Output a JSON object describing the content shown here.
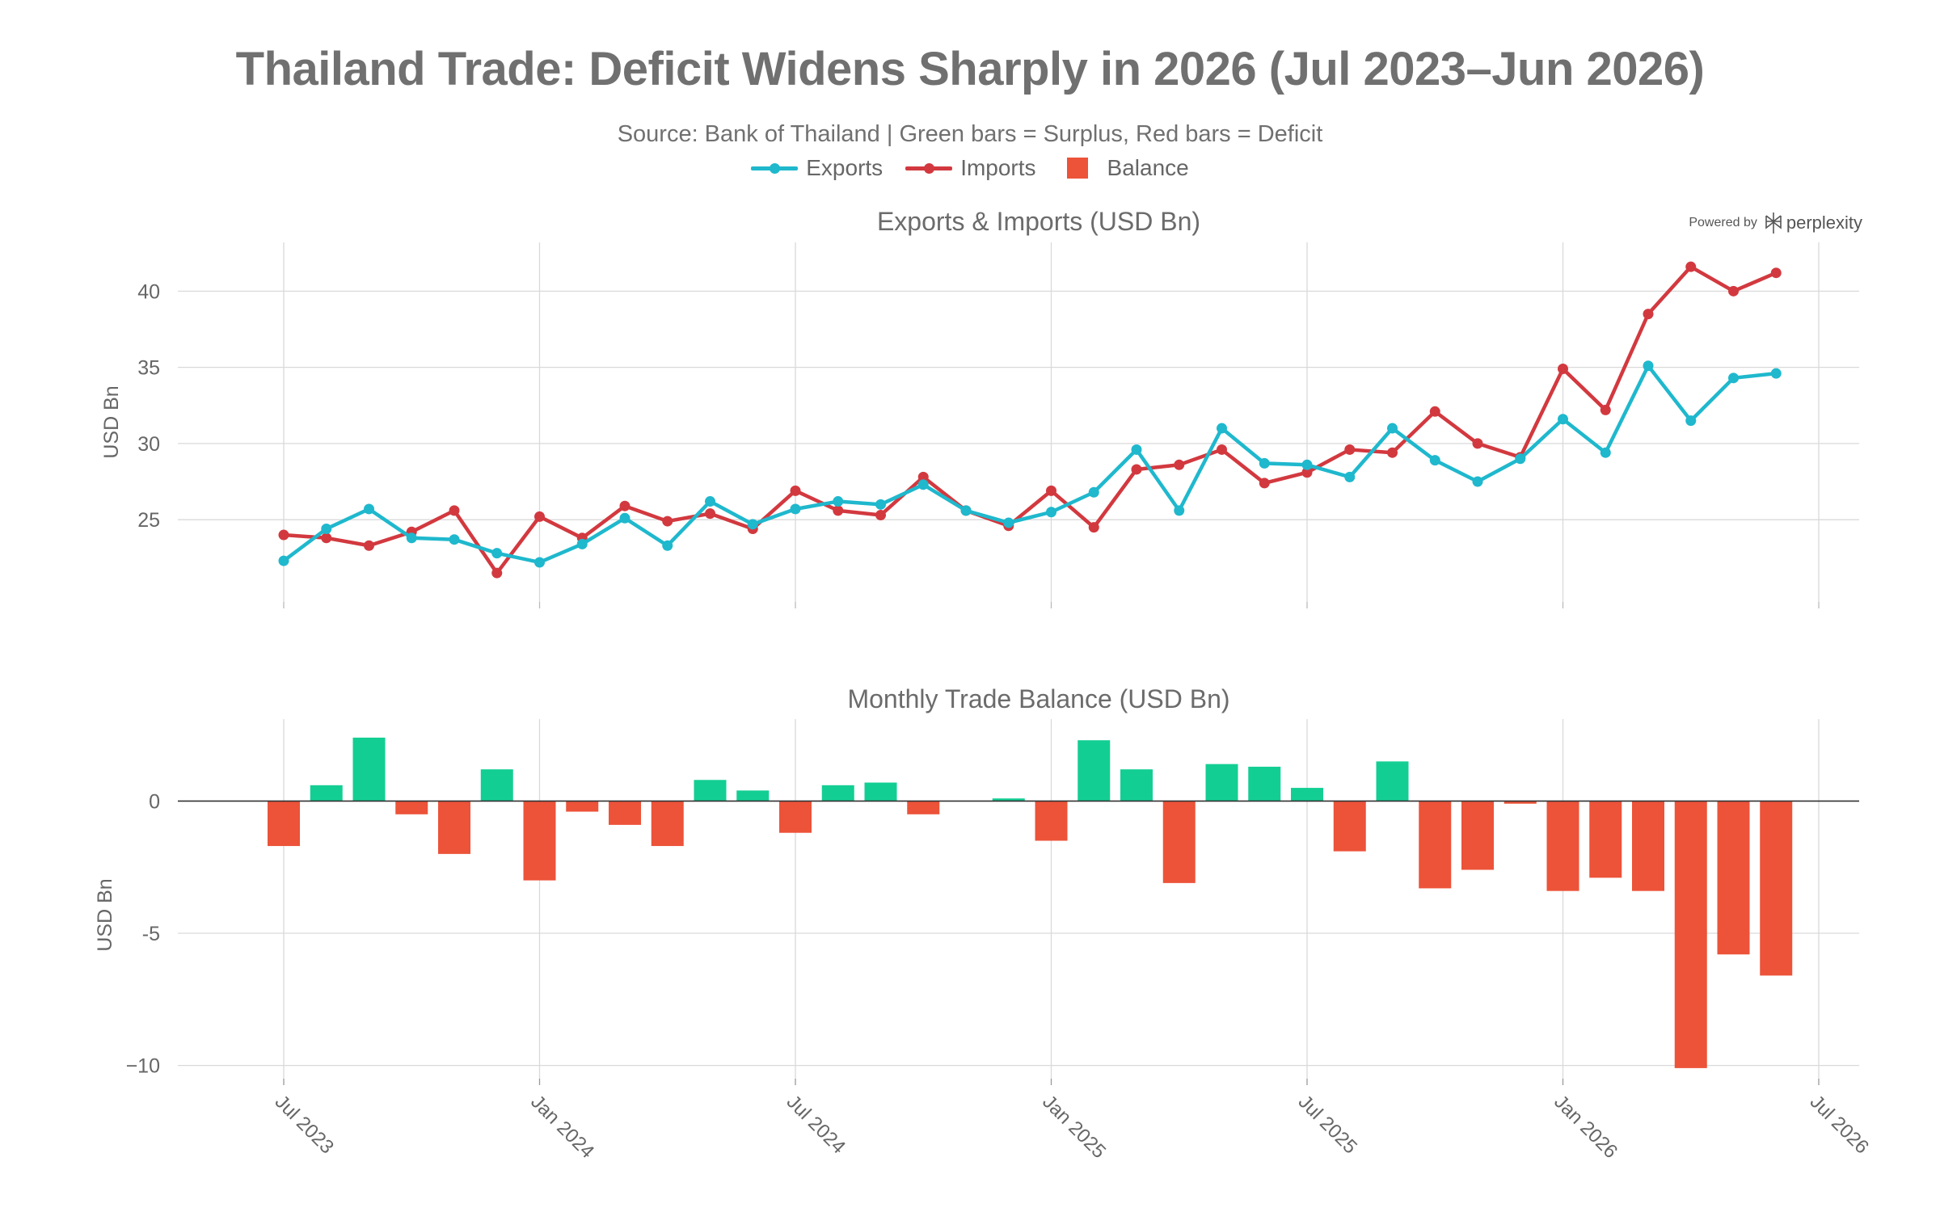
{
  "title": "Thailand Trade: Deficit Widens Sharply in 2026 (Jul 2023–Jun 2026)",
  "subtitle": "Source: Bank of Thailand | Green bars = Surplus, Red bars = Deficit",
  "legend": {
    "exports": "Exports",
    "imports": "Imports",
    "balance": "Balance"
  },
  "branding": {
    "powered_by": "Powered by",
    "brand": "perplexity"
  },
  "colors": {
    "exports": "#1fb8cd",
    "imports": "#d2393f",
    "surplus": "#13ce93",
    "deficit": "#ec5339",
    "grid": "#d9d9d9",
    "text": "#666666"
  },
  "chart_data": [
    {
      "type": "line",
      "title": "Exports & Imports (USD Bn)",
      "ylabel": "USD Bn",
      "ylim": [
        19.6,
        43.2
      ],
      "yticks": [
        25,
        30,
        35,
        40
      ],
      "x": [
        "2023-07",
        "2023-08",
        "2023-09",
        "2023-10",
        "2023-11",
        "2023-12",
        "2024-01",
        "2024-02",
        "2024-03",
        "2024-04",
        "2024-05",
        "2024-06",
        "2024-07",
        "2024-08",
        "2024-09",
        "2024-10",
        "2024-11",
        "2024-12",
        "2025-01",
        "2025-02",
        "2025-03",
        "2025-04",
        "2025-05",
        "2025-06",
        "2025-07",
        "2025-08",
        "2025-09",
        "2025-10",
        "2025-11",
        "2025-12",
        "2026-01",
        "2026-02",
        "2026-03",
        "2026-04",
        "2026-05",
        "2026-06"
      ],
      "series": [
        {
          "name": "Exports",
          "values": [
            22.3,
            24.4,
            25.7,
            23.8,
            23.7,
            22.8,
            22.2,
            23.4,
            25.1,
            23.3,
            26.2,
            24.7,
            25.7,
            26.2,
            26.0,
            27.3,
            25.6,
            24.8,
            25.5,
            26.8,
            29.6,
            25.6,
            31.0,
            28.7,
            28.6,
            27.8,
            31.0,
            28.9,
            27.5,
            29.0,
            31.6,
            29.4,
            35.1,
            31.5,
            34.3,
            34.6
          ]
        },
        {
          "name": "Imports",
          "values": [
            24.0,
            23.8,
            23.3,
            24.2,
            25.6,
            21.5,
            25.2,
            23.8,
            25.9,
            24.9,
            25.4,
            24.4,
            26.9,
            25.6,
            25.3,
            27.8,
            25.6,
            24.6,
            26.9,
            24.5,
            28.3,
            28.6,
            29.6,
            27.4,
            28.1,
            29.6,
            29.4,
            32.1,
            30.0,
            29.1,
            34.9,
            32.2,
            38.5,
            41.6,
            40.0,
            41.2
          ]
        }
      ],
      "xticks": [
        "Jul 2023",
        "Jan 2024",
        "Jul 2024",
        "Jan 2025",
        "Jul 2025",
        "Jan 2026",
        "Jul 2026"
      ],
      "grid": true
    },
    {
      "type": "bar",
      "title": "Monthly Trade Balance (USD Bn)",
      "ylabel": "USD Bn",
      "ylim": [
        -10.5,
        3.1
      ],
      "yticks": [
        -10,
        -5,
        0
      ],
      "ytick_labels": [
        "−10",
        "-5",
        "0"
      ],
      "series": [
        {
          "name": "Balance",
          "values": [
            -1.7,
            0.6,
            2.4,
            -0.5,
            -2.0,
            1.2,
            -3.0,
            -0.4,
            -0.9,
            -1.7,
            0.8,
            0.4,
            -1.2,
            0.6,
            0.7,
            -0.5,
            0.0,
            0.1,
            -1.5,
            2.3,
            1.2,
            -3.1,
            1.4,
            1.3,
            0.5,
            -1.9,
            1.5,
            -3.3,
            -2.6,
            -0.1,
            -3.4,
            -2.9,
            -3.4,
            -10.1,
            -5.8,
            -6.6
          ]
        }
      ],
      "xticks": [
        "Jul 2023",
        "Jan 2024",
        "Jul 2024",
        "Jan 2025",
        "Jul 2025",
        "Jan 2026",
        "Jul 2026"
      ],
      "grid": true
    }
  ]
}
